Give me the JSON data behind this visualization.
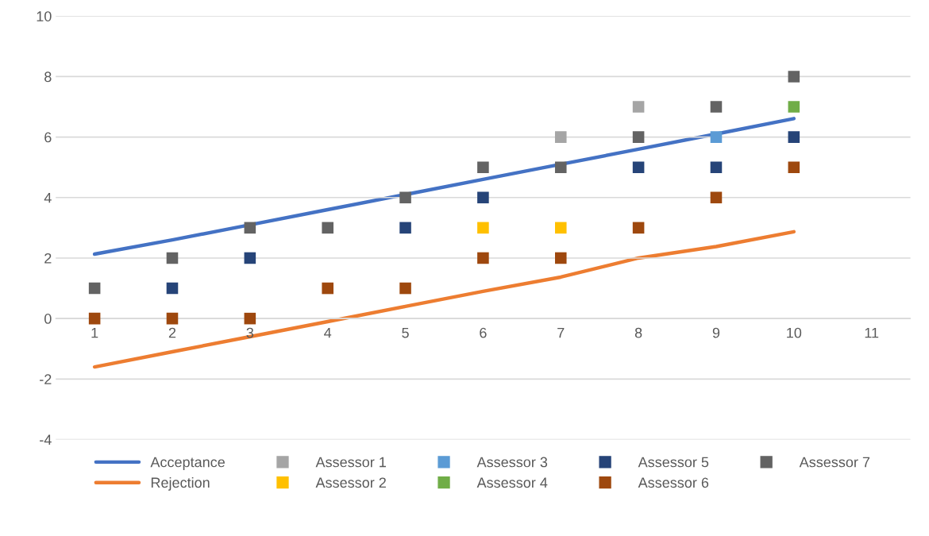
{
  "chart_data": {
    "type": "scatter",
    "categories": [
      "1",
      "2",
      "3",
      "4",
      "5",
      "6",
      "7",
      "8",
      "9",
      "10",
      "11"
    ],
    "ylim": [
      -4,
      10
    ],
    "yticks": [
      -4,
      -2,
      0,
      2,
      4,
      6,
      8,
      10
    ],
    "grid": "y",
    "legend": "bottom",
    "series": [
      {
        "name": "Acceptance",
        "type": "line",
        "marker": "none",
        "color": "#4472c4",
        "values": [
          2.13,
          2.6,
          3.1,
          3.6,
          4.1,
          4.6,
          5.1,
          5.6,
          6.1,
          6.61,
          null
        ]
      },
      {
        "name": "Rejection",
        "type": "line",
        "marker": "none",
        "color": "#ed7d31",
        "values": [
          -1.6,
          -1.1,
          -0.6,
          -0.1,
          0.4,
          0.9,
          1.37,
          2.0,
          2.38,
          2.87,
          null
        ]
      },
      {
        "name": "Assessor 1",
        "marker": "square",
        "color": "#a5a5a5",
        "values": [
          null,
          null,
          null,
          null,
          null,
          null,
          6,
          7,
          null,
          null,
          null
        ]
      },
      {
        "name": "Assessor 2",
        "marker": "square",
        "color": "#ffc000",
        "values": [
          null,
          null,
          null,
          null,
          null,
          3,
          3,
          null,
          null,
          null,
          null
        ]
      },
      {
        "name": "Assessor 3",
        "marker": "square",
        "color": "#5b9bd5",
        "values": [
          null,
          null,
          null,
          null,
          null,
          null,
          null,
          null,
          6,
          null,
          null
        ]
      },
      {
        "name": "Assessor 4",
        "marker": "square",
        "color": "#70ad47",
        "values": [
          null,
          null,
          null,
          null,
          null,
          null,
          null,
          null,
          null,
          7,
          null
        ]
      },
      {
        "name": "Assessor 5",
        "marker": "square",
        "color": "#264478",
        "values": [
          null,
          1,
          2,
          null,
          3,
          4,
          null,
          5,
          5,
          6,
          null
        ]
      },
      {
        "name": "Assessor 6",
        "marker": "square",
        "color": "#9e480e",
        "values": [
          0,
          0,
          0,
          1,
          1,
          2,
          2,
          3,
          4,
          5,
          null
        ]
      },
      {
        "name": "Assessor 7",
        "marker": "square",
        "color": "#636363",
        "values": [
          1,
          2,
          3,
          3,
          4,
          5,
          5,
          6,
          7,
          8,
          null
        ]
      }
    ]
  }
}
